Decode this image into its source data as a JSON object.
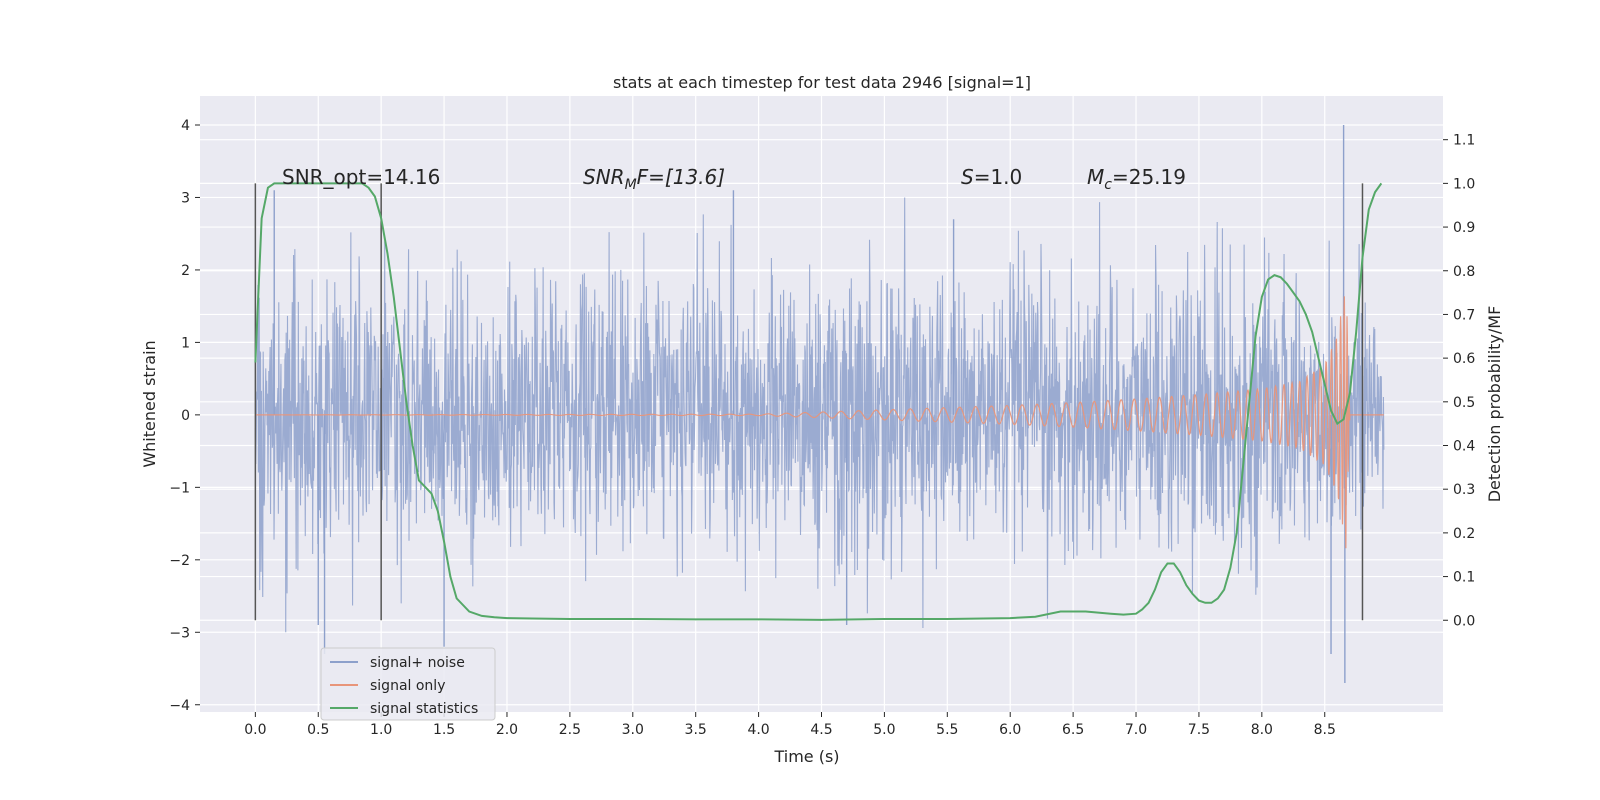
{
  "chart_data": {
    "type": "line",
    "title": "stats at each timestep for test data 2946 [signal=1]",
    "xlabel": "Time (s)",
    "ylabel": "Whitened strain",
    "y2label": "Detection probability/MF",
    "xlim": [
      -0.44,
      9.44
    ],
    "ylim": [
      -4.1,
      4.4
    ],
    "y2lim": [
      -0.21,
      1.2
    ],
    "xticks": [
      "0.0",
      "0.5",
      "1.0",
      "1.5",
      "2.0",
      "2.5",
      "3.0",
      "3.5",
      "4.0",
      "4.5",
      "5.0",
      "5.5",
      "6.0",
      "6.5",
      "7.0",
      "7.5",
      "8.0",
      "8.5"
    ],
    "yticks": [
      "−4",
      "−3",
      "−2",
      "−1",
      "0",
      "1",
      "2",
      "3",
      "4"
    ],
    "y2ticks": [
      "0.0",
      "0.1",
      "0.2",
      "0.3",
      "0.4",
      "0.5",
      "0.6",
      "0.7",
      "0.8",
      "0.9",
      "1.0",
      "1.1"
    ],
    "annotations": {
      "snr_opt": "SNR_opt=14.16",
      "snr_mf_base": "SNR",
      "snr_mf_sub": "M",
      "snr_mf_rest": "F=[13.6]",
      "s_main": "S",
      "s_rest": "=1.0",
      "mc_main": "M",
      "mc_sub": "c",
      "mc_rest": "=25.19"
    },
    "legend": {
      "position": "lower-left",
      "entries": [
        "signal+ noise",
        "signal only",
        "signal statistics"
      ]
    },
    "colors": {
      "noise": "#8da0cb",
      "signal": "#e8957a",
      "stats": "#55a868",
      "vline": "#555555",
      "background": "#eaeaf2",
      "grid": "#ffffff"
    },
    "vertical_lines": [
      {
        "x": 0.0,
        "y2_range": [
          0.0,
          1.0
        ]
      },
      {
        "x": 1.0,
        "y2_range": [
          0.0,
          1.0
        ]
      },
      {
        "x": 8.8,
        "y2_range": [
          0.0,
          1.0
        ]
      }
    ],
    "series": [
      {
        "name": "signal+ noise",
        "axis": "left",
        "kind": "noise",
        "x_range": [
          0.0,
          8.97
        ],
        "typical_abs": 1.3,
        "extreme_points": [
          {
            "x": 0.15,
            "y": 3.1
          },
          {
            "x": 0.5,
            "y": -2.9
          },
          {
            "x": 0.55,
            "y": -3.3
          },
          {
            "x": 1.5,
            "y": -3.2
          },
          {
            "x": 3.8,
            "y": 3.1
          },
          {
            "x": 4.7,
            "y": -2.9
          },
          {
            "x": 5.55,
            "y": 2.7
          },
          {
            "x": 8.55,
            "y": -3.3
          },
          {
            "x": 8.65,
            "y": 4.0
          },
          {
            "x": 8.66,
            "y": -3.7
          }
        ]
      },
      {
        "name": "signal only",
        "axis": "left",
        "kind": "chirp",
        "x": [
          0,
          4.0,
          4.5,
          5.0,
          5.5,
          6.0,
          6.5,
          7.0,
          7.5,
          8.0,
          8.3,
          8.5,
          8.6,
          8.65,
          8.67,
          8.7
        ],
        "envelope": [
          0,
          0.01,
          0.04,
          0.07,
          0.1,
          0.13,
          0.17,
          0.22,
          0.28,
          0.36,
          0.46,
          0.7,
          1.1,
          1.6,
          1.9,
          0.0
        ]
      },
      {
        "name": "signal statistics",
        "axis": "right",
        "kind": "line",
        "x": [
          0.0,
          0.05,
          0.1,
          0.15,
          0.3,
          0.5,
          0.7,
          0.85,
          0.9,
          0.95,
          1.0,
          1.05,
          1.1,
          1.15,
          1.2,
          1.25,
          1.3,
          1.4,
          1.45,
          1.5,
          1.55,
          1.6,
          1.7,
          1.8,
          1.9,
          2.0,
          2.2,
          2.5,
          3.0,
          3.5,
          4.0,
          4.5,
          5.0,
          5.5,
          6.0,
          6.2,
          6.4,
          6.6,
          6.8,
          6.9,
          7.0,
          7.05,
          7.1,
          7.15,
          7.2,
          7.25,
          7.3,
          7.35,
          7.4,
          7.45,
          7.5,
          7.55,
          7.6,
          7.65,
          7.7,
          7.75,
          7.8,
          7.85,
          7.9,
          7.95,
          8.0,
          8.05,
          8.1,
          8.15,
          8.2,
          8.25,
          8.3,
          8.35,
          8.4,
          8.45,
          8.5,
          8.55,
          8.6,
          8.65,
          8.7,
          8.75,
          8.8,
          8.85,
          8.9,
          8.95
        ],
        "y": [
          0.59,
          0.92,
          0.99,
          1.0,
          1.0,
          1.0,
          1.0,
          1.0,
          0.99,
          0.97,
          0.92,
          0.84,
          0.74,
          0.62,
          0.5,
          0.4,
          0.32,
          0.29,
          0.25,
          0.18,
          0.1,
          0.05,
          0.02,
          0.01,
          0.007,
          0.005,
          0.004,
          0.003,
          0.003,
          0.002,
          0.002,
          0.001,
          0.003,
          0.003,
          0.005,
          0.008,
          0.02,
          0.02,
          0.015,
          0.013,
          0.015,
          0.025,
          0.04,
          0.07,
          0.11,
          0.13,
          0.13,
          0.11,
          0.08,
          0.06,
          0.045,
          0.04,
          0.04,
          0.05,
          0.07,
          0.12,
          0.2,
          0.35,
          0.5,
          0.65,
          0.74,
          0.78,
          0.79,
          0.785,
          0.77,
          0.75,
          0.73,
          0.7,
          0.66,
          0.6,
          0.54,
          0.48,
          0.45,
          0.46,
          0.52,
          0.66,
          0.83,
          0.94,
          0.98,
          1.0
        ]
      }
    ]
  }
}
